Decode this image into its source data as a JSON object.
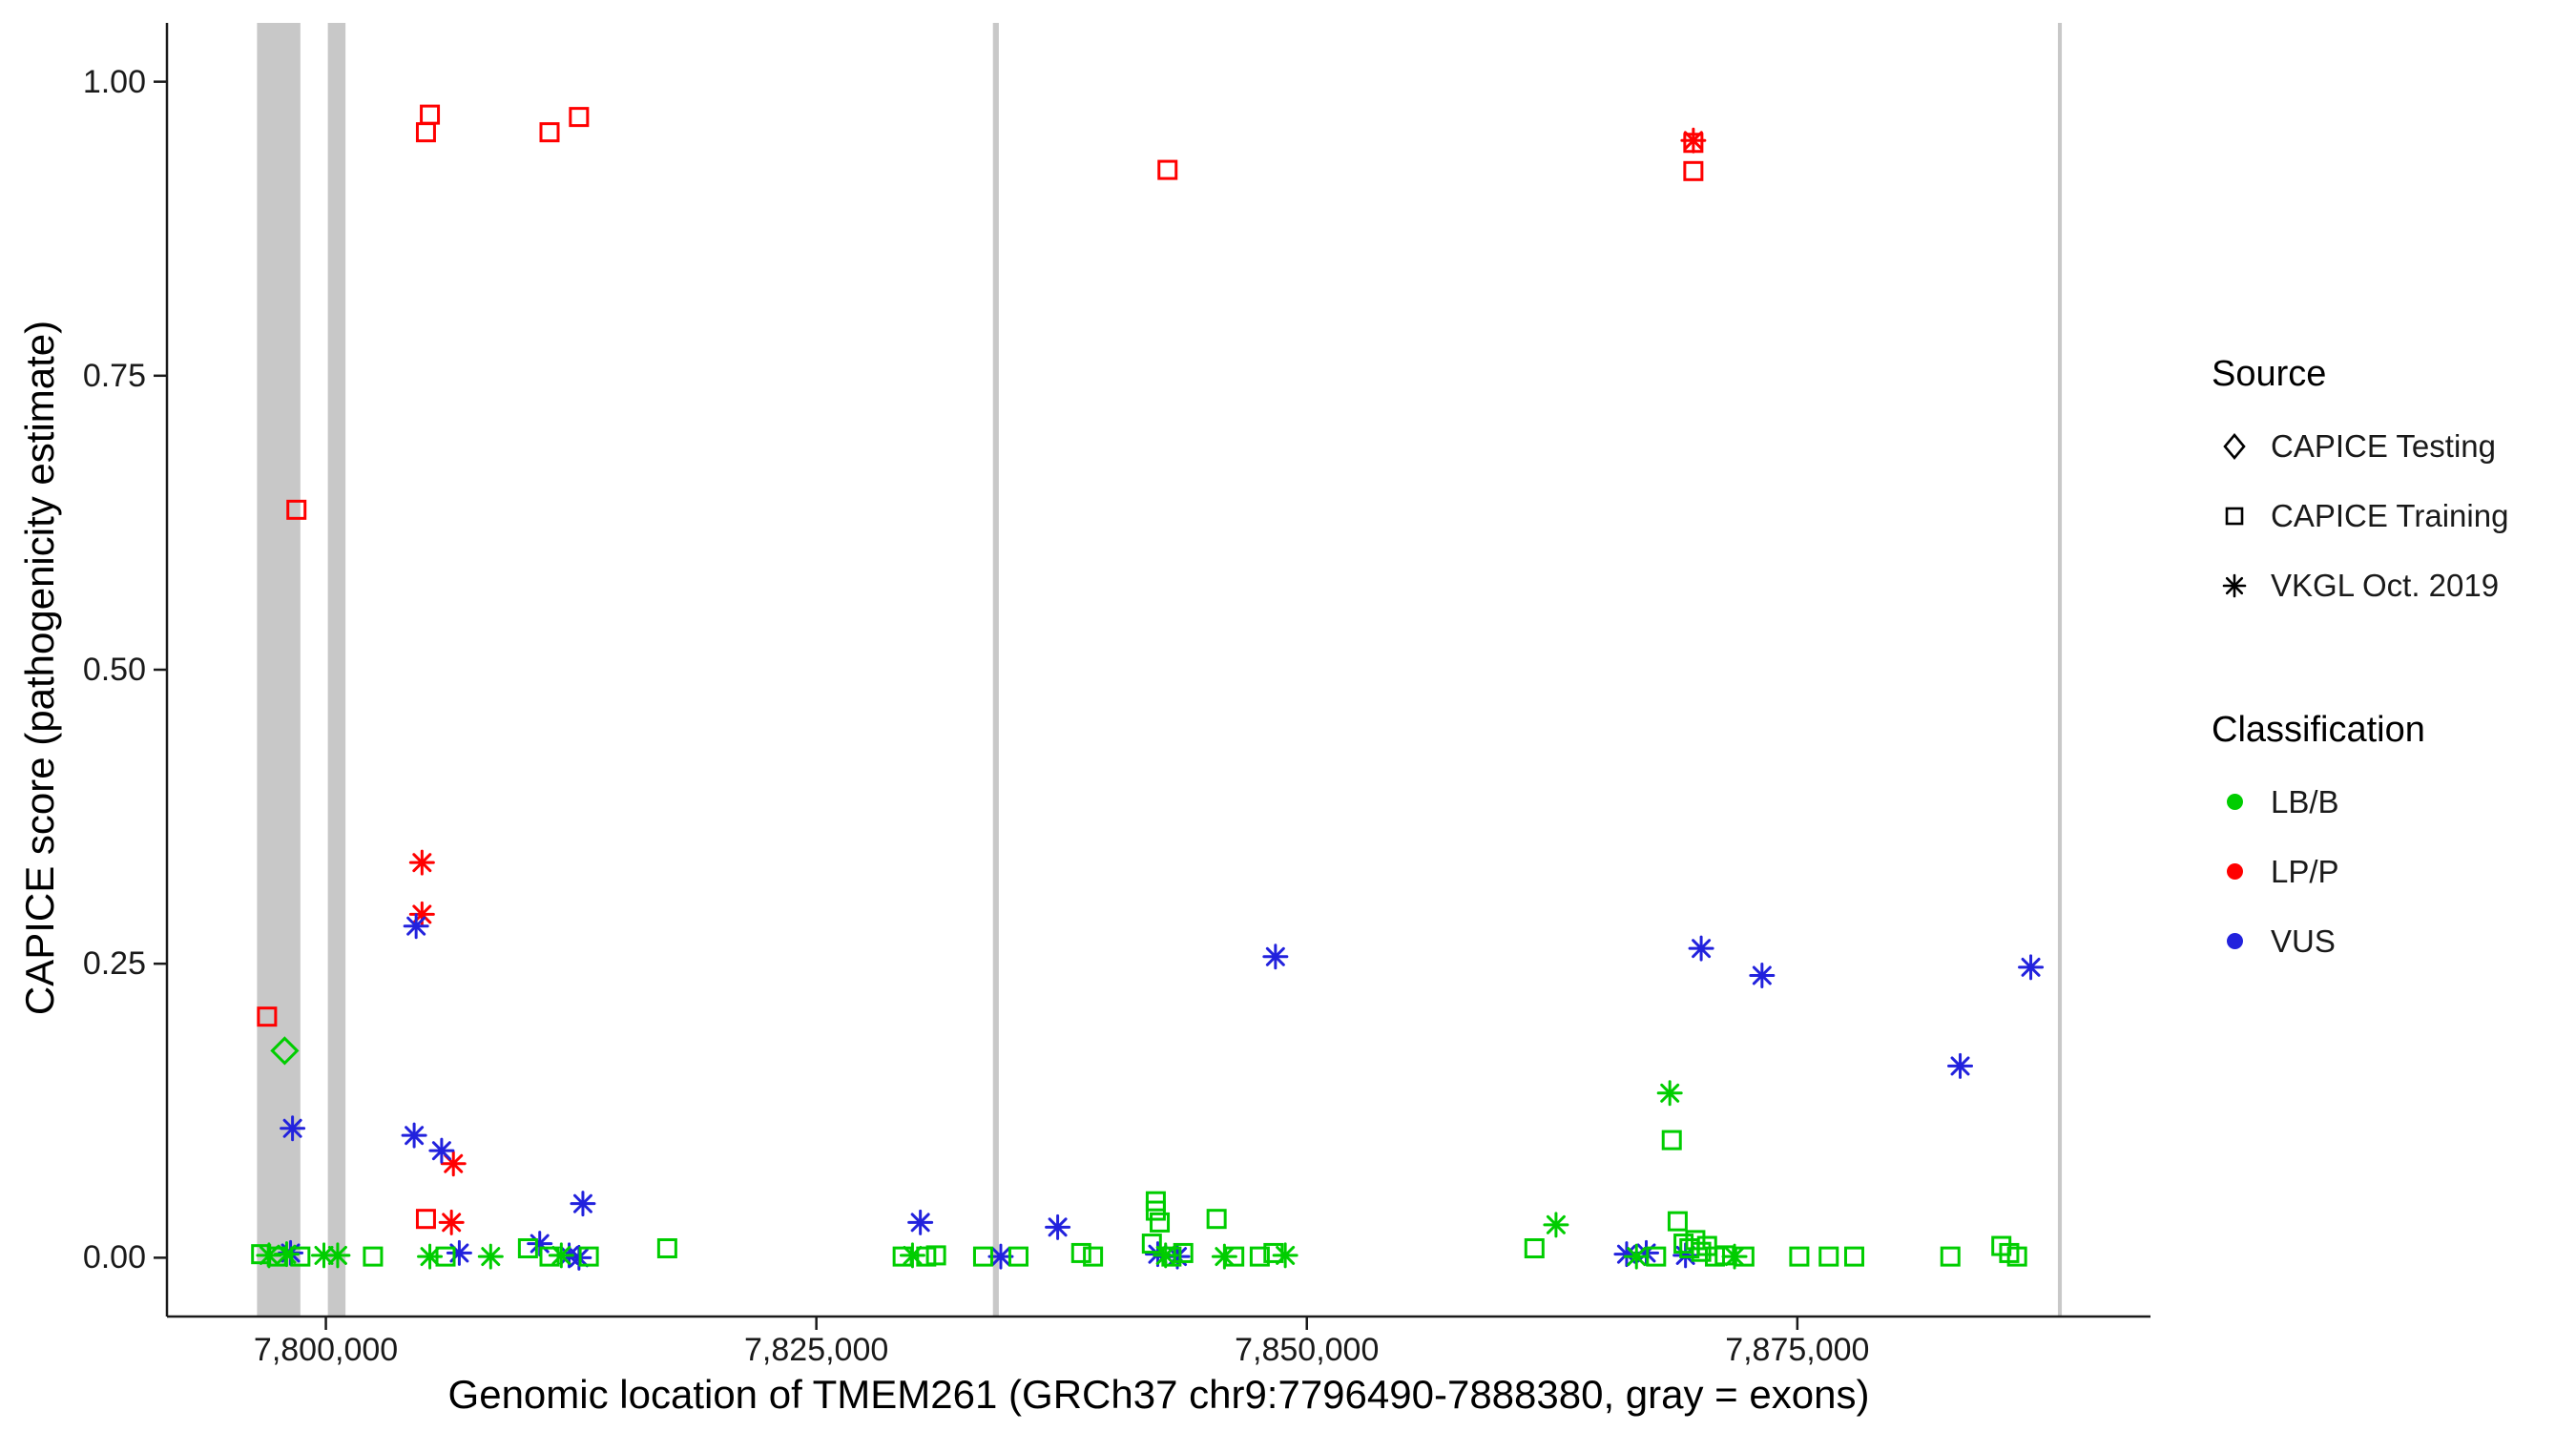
{
  "axes": {
    "x": {
      "label": "Genomic location of TMEM261 (GRCh37 chr9:7796490-7888380, gray = exons)",
      "ticks": [
        {
          "v": 7800000,
          "label": "7,800,000"
        },
        {
          "v": 7825000,
          "label": "7,825,000"
        },
        {
          "v": 7850000,
          "label": "7,850,000"
        },
        {
          "v": 7875000,
          "label": "7,875,000"
        }
      ]
    },
    "y": {
      "label": "CAPICE score (pathogenicity estimate)",
      "ticks": [
        {
          "v": 0.0,
          "label": "0.00"
        },
        {
          "v": 0.25,
          "label": "0.25"
        },
        {
          "v": 0.5,
          "label": "0.50"
        },
        {
          "v": 0.75,
          "label": "0.75"
        },
        {
          "v": 1.0,
          "label": "1.00"
        }
      ]
    }
  },
  "legend": {
    "source": {
      "title": "Source",
      "items": [
        {
          "label": "CAPICE Testing",
          "shape": "diamond"
        },
        {
          "label": "CAPICE Training",
          "shape": "square"
        },
        {
          "label": "VKGL Oct. 2019",
          "shape": "asterisk"
        }
      ]
    },
    "classification": {
      "title": "Classification",
      "items": [
        {
          "label": "LB/B",
          "color": "#00CD00"
        },
        {
          "label": "LP/P",
          "color": "#FF0000"
        },
        {
          "label": "VUS",
          "color": "#2222DD"
        }
      ]
    }
  },
  "chart_data": {
    "type": "scatter",
    "title": "",
    "xlabel": "Genomic location of TMEM261 (GRCh37 chr9:7796490-7888380, gray = exons)",
    "ylabel": "CAPICE score (pathogenicity estimate)",
    "xlim": [
      7791900,
      7893000
    ],
    "ylim": [
      -0.05,
      1.05
    ],
    "grid": false,
    "legend_position": "right",
    "exon_color": "#C8C8C8",
    "colors": {
      "LB/B": "#00CD00",
      "LP/P": "#FF0000",
      "VUS": "#2222DD"
    },
    "shape_of_source": {
      "test": "diamond",
      "train": "square",
      "vkgl": "asterisk"
    },
    "exons": [
      {
        "start": 7796490,
        "end": 7798700
      },
      {
        "start": 7800100,
        "end": 7801000
      },
      {
        "start": 7834000,
        "end": 7834300
      },
      {
        "start": 7888280,
        "end": 7888480
      }
    ],
    "point_format": [
      "x",
      "y",
      "source",
      "classification"
    ],
    "points": [
      [
        7805300,
        0.972,
        "train",
        "LP/P"
      ],
      [
        7805100,
        0.957,
        "train",
        "LP/P"
      ],
      [
        7811400,
        0.957,
        "train",
        "LP/P"
      ],
      [
        7812900,
        0.97,
        "train",
        "LP/P"
      ],
      [
        7842900,
        0.925,
        "train",
        "LP/P"
      ],
      [
        7869700,
        0.948,
        "train",
        "LP/P"
      ],
      [
        7869700,
        0.924,
        "train",
        "LP/P"
      ],
      [
        7798500,
        0.636,
        "train",
        "LP/P"
      ],
      [
        7797000,
        0.205,
        "train",
        "LP/P"
      ],
      [
        7805100,
        0.033,
        "train",
        "LP/P"
      ],
      [
        7804900,
        0.336,
        "vkgl",
        "LP/P"
      ],
      [
        7804900,
        0.292,
        "vkgl",
        "LP/P"
      ],
      [
        7806500,
        0.08,
        "vkgl",
        "LP/P"
      ],
      [
        7806400,
        0.03,
        "vkgl",
        "LP/P"
      ],
      [
        7869700,
        0.95,
        "vkgl",
        "LP/P"
      ],
      [
        7798300,
        0.11,
        "vkgl",
        "VUS"
      ],
      [
        7804600,
        0.282,
        "vkgl",
        "VUS"
      ],
      [
        7804500,
        0.104,
        "vkgl",
        "VUS"
      ],
      [
        7805900,
        0.091,
        "vkgl",
        "VUS"
      ],
      [
        7813100,
        0.046,
        "vkgl",
        "VUS"
      ],
      [
        7848400,
        0.256,
        "vkgl",
        "VUS"
      ],
      [
        7870100,
        0.263,
        "vkgl",
        "VUS"
      ],
      [
        7873200,
        0.24,
        "vkgl",
        "VUS"
      ],
      [
        7883300,
        0.163,
        "vkgl",
        "VUS"
      ],
      [
        7886900,
        0.247,
        "vkgl",
        "VUS"
      ],
      [
        7798200,
        0.004,
        "vkgl",
        "VUS"
      ],
      [
        7806800,
        0.004,
        "vkgl",
        "VUS"
      ],
      [
        7810900,
        0.012,
        "vkgl",
        "VUS"
      ],
      [
        7812400,
        0.002,
        "vkgl",
        "VUS"
      ],
      [
        7812900,
        0.0,
        "vkgl",
        "VUS"
      ],
      [
        7830300,
        0.03,
        "vkgl",
        "VUS"
      ],
      [
        7834400,
        0.001,
        "vkgl",
        "VUS"
      ],
      [
        7837300,
        0.026,
        "vkgl",
        "VUS"
      ],
      [
        7842400,
        0.003,
        "vkgl",
        "VUS"
      ],
      [
        7843400,
        0.001,
        "vkgl",
        "VUS"
      ],
      [
        7866300,
        0.003,
        "vkgl",
        "VUS"
      ],
      [
        7867300,
        0.004,
        "vkgl",
        "VUS"
      ],
      [
        7869300,
        0.002,
        "vkgl",
        "VUS"
      ],
      [
        7797900,
        0.176,
        "test",
        "LB/B"
      ],
      [
        7868500,
        0.14,
        "vkgl",
        "LB/B"
      ],
      [
        7868600,
        0.1,
        "train",
        "LB/B"
      ],
      [
        7862700,
        0.028,
        "vkgl",
        "LB/B"
      ],
      [
        7868900,
        0.031,
        "train",
        "LB/B"
      ],
      [
        7842300,
        0.048,
        "train",
        "LB/B"
      ],
      [
        7842300,
        0.04,
        "train",
        "LB/B"
      ],
      [
        7842500,
        0.03,
        "train",
        "LB/B"
      ],
      [
        7845400,
        0.033,
        "train",
        "LB/B"
      ],
      [
        7817400,
        0.008,
        "train",
        "LB/B"
      ],
      [
        7861600,
        0.008,
        "train",
        "LB/B"
      ],
      [
        7796700,
        0.003,
        "train",
        "LB/B"
      ],
      [
        7797100,
        0.002,
        "vkgl",
        "LB/B"
      ],
      [
        7797500,
        0.001,
        "train",
        "LB/B"
      ],
      [
        7798000,
        0.003,
        "vkgl",
        "LB/B"
      ],
      [
        7798700,
        0.001,
        "train",
        "LB/B"
      ],
      [
        7799900,
        0.002,
        "vkgl",
        "LB/B"
      ],
      [
        7800600,
        0.002,
        "vkgl",
        "LB/B"
      ],
      [
        7802400,
        0.001,
        "train",
        "LB/B"
      ],
      [
        7805300,
        0.001,
        "vkgl",
        "LB/B"
      ],
      [
        7806100,
        0.001,
        "train",
        "LB/B"
      ],
      [
        7808400,
        0.001,
        "vkgl",
        "LB/B"
      ],
      [
        7810300,
        0.008,
        "train",
        "LB/B"
      ],
      [
        7811400,
        0.001,
        "train",
        "LB/B"
      ],
      [
        7812000,
        0.002,
        "vkgl",
        "LB/B"
      ],
      [
        7813400,
        0.001,
        "train",
        "LB/B"
      ],
      [
        7829400,
        0.001,
        "train",
        "LB/B"
      ],
      [
        7829900,
        0.002,
        "vkgl",
        "LB/B"
      ],
      [
        7830600,
        0.001,
        "train",
        "LB/B"
      ],
      [
        7831100,
        0.002,
        "train",
        "LB/B"
      ],
      [
        7833500,
        0.001,
        "train",
        "LB/B"
      ],
      [
        7835300,
        0.001,
        "train",
        "LB/B"
      ],
      [
        7838500,
        0.004,
        "train",
        "LB/B"
      ],
      [
        7839100,
        0.001,
        "train",
        "LB/B"
      ],
      [
        7842100,
        0.012,
        "train",
        "LB/B"
      ],
      [
        7842800,
        0.002,
        "vkgl",
        "LB/B"
      ],
      [
        7843100,
        0.001,
        "train",
        "LB/B"
      ],
      [
        7843700,
        0.004,
        "train",
        "LB/B"
      ],
      [
        7845800,
        0.001,
        "vkgl",
        "LB/B"
      ],
      [
        7846300,
        0.001,
        "train",
        "LB/B"
      ],
      [
        7847600,
        0.001,
        "train",
        "LB/B"
      ],
      [
        7848300,
        0.004,
        "train",
        "LB/B"
      ],
      [
        7848900,
        0.002,
        "vkgl",
        "LB/B"
      ],
      [
        7866800,
        0.001,
        "vkgl",
        "LB/B"
      ],
      [
        7867800,
        0.001,
        "train",
        "LB/B"
      ],
      [
        7869200,
        0.012,
        "train",
        "LB/B"
      ],
      [
        7869500,
        0.008,
        "train",
        "LB/B"
      ],
      [
        7869800,
        0.015,
        "train",
        "LB/B"
      ],
      [
        7870100,
        0.005,
        "train",
        "LB/B"
      ],
      [
        7870400,
        0.01,
        "train",
        "LB/B"
      ],
      [
        7870800,
        0.001,
        "train",
        "LB/B"
      ],
      [
        7871300,
        0.002,
        "train",
        "LB/B"
      ],
      [
        7871800,
        0.001,
        "vkgl",
        "LB/B"
      ],
      [
        7872300,
        0.001,
        "train",
        "LB/B"
      ],
      [
        7875100,
        0.001,
        "train",
        "LB/B"
      ],
      [
        7876600,
        0.001,
        "train",
        "LB/B"
      ],
      [
        7877900,
        0.001,
        "train",
        "LB/B"
      ],
      [
        7882800,
        0.001,
        "train",
        "LB/B"
      ],
      [
        7885400,
        0.01,
        "train",
        "LB/B"
      ],
      [
        7885800,
        0.004,
        "train",
        "LB/B"
      ],
      [
        7886200,
        0.001,
        "train",
        "LB/B"
      ]
    ]
  }
}
